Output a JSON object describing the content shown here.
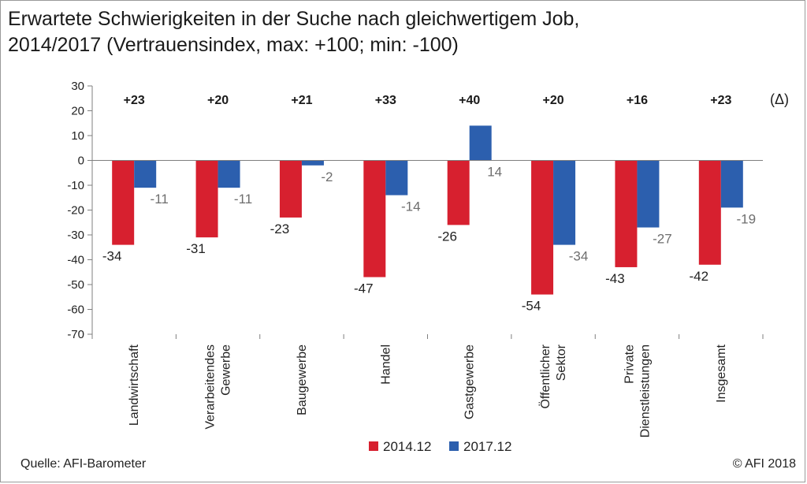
{
  "title_line1": "Erwartete Schwierigkeiten in der Suche nach gleichwertigem Job,",
  "title_line2": "2014/2017  (Vertrauensindex, max: +100; min: -100)",
  "source": "Quelle: AFI-Barometer",
  "copyright": "© AFI 2018",
  "colors": {
    "series_2014": "#d7202f",
    "series_2017": "#2c5fae"
  },
  "chart_data": {
    "type": "bar",
    "categories": [
      [
        "Landwirtschaft"
      ],
      [
        "Verarbeitendes",
        "Gewerbe"
      ],
      [
        "Baugewerbe"
      ],
      [
        "Handel"
      ],
      [
        "Gastgewerbe"
      ],
      [
        "Öffentlicher",
        "Sektor"
      ],
      [
        "Private",
        "Dienstleistungen"
      ],
      [
        "Insgesamt"
      ]
    ],
    "series": [
      {
        "name": "2014.12",
        "values": [
          -34,
          -31,
          -23,
          -47,
          -26,
          -54,
          -43,
          -42
        ]
      },
      {
        "name": "2017.12",
        "values": [
          -11,
          -11,
          -2,
          -14,
          14,
          -34,
          -27,
          -19
        ]
      }
    ],
    "delta_labels": [
      "+23",
      "+20",
      "+21",
      "+33",
      "+40",
      "+20",
      "+16",
      "+23"
    ],
    "delta_header": "(Δ)",
    "yticks": [
      30,
      20,
      10,
      0,
      -10,
      -20,
      -30,
      -40,
      -50,
      -60,
      -70
    ],
    "ylim": [
      -70,
      30
    ],
    "legend_position": "bottom",
    "grid": false
  }
}
